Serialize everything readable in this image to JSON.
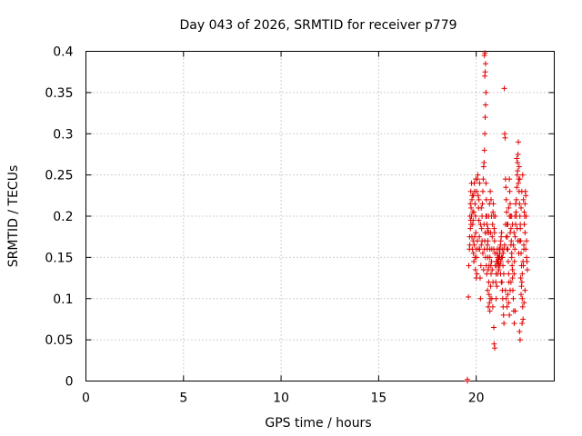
{
  "chart_data": {
    "type": "scatter",
    "title": "Day 043 of 2026, SRMTID for receiver p779",
    "xlabel": "GPS time / hours",
    "ylabel": "SRMTID / TECUs",
    "xlim": [
      0,
      24
    ],
    "ylim": [
      0,
      0.4
    ],
    "xticks": [
      0,
      5,
      10,
      15,
      20
    ],
    "xtick_labels": [
      "0",
      "5",
      "10",
      "15",
      "20"
    ],
    "yticks": [
      0,
      0.05,
      0.1,
      0.15,
      0.2,
      0.25,
      0.3,
      0.35,
      0.4
    ],
    "ytick_labels": [
      "0",
      "0.05",
      "0.1",
      "0.15",
      "0.2",
      "0.25",
      "0.3",
      "0.35",
      "0.4"
    ],
    "grid": true,
    "marker": "+",
    "color": "#e00000",
    "series": [
      {
        "name": "SRMTID",
        "points": [
          [
            19.55,
            0.0
          ],
          [
            19.55,
            0.002
          ],
          [
            19.6,
            0.102
          ],
          [
            19.62,
            0.14
          ],
          [
            19.65,
            0.16
          ],
          [
            19.67,
            0.165
          ],
          [
            19.7,
            0.185
          ],
          [
            19.72,
            0.195
          ],
          [
            19.74,
            0.21
          ],
          [
            19.76,
            0.2
          ],
          [
            19.78,
            0.22
          ],
          [
            19.8,
            0.225
          ],
          [
            19.82,
            0.19
          ],
          [
            19.84,
            0.17
          ],
          [
            19.86,
            0.155
          ],
          [
            19.88,
            0.145
          ],
          [
            19.9,
            0.24
          ],
          [
            19.92,
            0.23
          ],
          [
            19.94,
            0.215
          ],
          [
            19.96,
            0.2
          ],
          [
            19.98,
            0.18
          ],
          [
            20.0,
            0.16
          ],
          [
            20.02,
            0.15
          ],
          [
            20.04,
            0.13
          ],
          [
            20.06,
            0.245
          ],
          [
            20.08,
            0.25
          ],
          [
            20.1,
            0.225
          ],
          [
            20.12,
            0.21
          ],
          [
            20.14,
            0.195
          ],
          [
            20.16,
            0.175
          ],
          [
            20.18,
            0.16
          ],
          [
            20.2,
            0.125
          ],
          [
            20.22,
            0.1
          ],
          [
            20.24,
            0.14
          ],
          [
            20.26,
            0.165
          ],
          [
            20.28,
            0.185
          ],
          [
            20.3,
            0.2
          ],
          [
            20.32,
            0.215
          ],
          [
            20.34,
            0.23
          ],
          [
            20.36,
            0.245
          ],
          [
            20.38,
            0.26
          ],
          [
            20.4,
            0.265
          ],
          [
            20.42,
            0.28
          ],
          [
            20.44,
            0.3
          ],
          [
            20.46,
            0.32
          ],
          [
            20.48,
            0.335
          ],
          [
            20.5,
            0.35
          ],
          [
            20.44,
            0.37
          ],
          [
            20.46,
            0.375
          ],
          [
            20.48,
            0.385
          ],
          [
            20.42,
            0.395
          ],
          [
            20.45,
            0.398
          ],
          [
            20.5,
            0.24
          ],
          [
            20.52,
            0.22
          ],
          [
            20.54,
            0.2
          ],
          [
            20.56,
            0.18
          ],
          [
            20.58,
            0.165
          ],
          [
            20.6,
            0.15
          ],
          [
            20.62,
            0.135
          ],
          [
            20.64,
            0.12
          ],
          [
            20.66,
            0.105
          ],
          [
            20.68,
            0.095
          ],
          [
            20.7,
            0.085
          ],
          [
            20.72,
            0.1
          ],
          [
            20.74,
            0.115
          ],
          [
            20.76,
            0.13
          ],
          [
            20.78,
            0.145
          ],
          [
            20.8,
            0.16
          ],
          [
            20.82,
            0.175
          ],
          [
            20.84,
            0.19
          ],
          [
            20.86,
            0.205
          ],
          [
            20.88,
            0.215
          ],
          [
            20.9,
            0.2
          ],
          [
            20.92,
            0.185
          ],
          [
            20.94,
            0.17
          ],
          [
            20.96,
            0.155
          ],
          [
            20.98,
            0.14
          ],
          [
            21.0,
            0.12
          ],
          [
            20.9,
            0.065
          ],
          [
            20.92,
            0.045
          ],
          [
            20.95,
            0.04
          ],
          [
            21.02,
            0.13
          ],
          [
            21.04,
            0.145
          ],
          [
            21.06,
            0.155
          ],
          [
            21.08,
            0.16
          ],
          [
            21.1,
            0.15
          ],
          [
            21.12,
            0.145
          ],
          [
            21.14,
            0.14
          ],
          [
            21.16,
            0.135
          ],
          [
            21.18,
            0.15
          ],
          [
            21.2,
            0.155
          ],
          [
            21.22,
            0.16
          ],
          [
            21.24,
            0.165
          ],
          [
            21.26,
            0.17
          ],
          [
            21.28,
            0.175
          ],
          [
            21.3,
            0.18
          ],
          [
            21.32,
            0.12
          ],
          [
            21.34,
            0.11
          ],
          [
            21.36,
            0.1
          ],
          [
            21.38,
            0.09
          ],
          [
            21.4,
            0.08
          ],
          [
            21.42,
            0.07
          ],
          [
            21.44,
            0.355
          ],
          [
            21.46,
            0.3
          ],
          [
            21.48,
            0.295
          ],
          [
            21.5,
            0.245
          ],
          [
            21.52,
            0.235
          ],
          [
            21.54,
            0.22
          ],
          [
            21.56,
            0.205
          ],
          [
            21.58,
            0.19
          ],
          [
            21.6,
            0.175
          ],
          [
            21.62,
            0.16
          ],
          [
            21.64,
            0.145
          ],
          [
            21.66,
            0.13
          ],
          [
            21.68,
            0.12
          ],
          [
            21.7,
            0.245
          ],
          [
            21.72,
            0.23
          ],
          [
            21.74,
            0.215
          ],
          [
            21.76,
            0.2
          ],
          [
            21.78,
            0.185
          ],
          [
            21.8,
            0.17
          ],
          [
            21.82,
            0.155
          ],
          [
            21.84,
            0.14
          ],
          [
            21.86,
            0.125
          ],
          [
            21.88,
            0.11
          ],
          [
            21.9,
            0.1
          ],
          [
            21.92,
            0.085
          ],
          [
            21.94,
            0.13
          ],
          [
            21.96,
            0.145
          ],
          [
            21.98,
            0.16
          ],
          [
            22.0,
            0.175
          ],
          [
            22.02,
            0.19
          ],
          [
            22.04,
            0.205
          ],
          [
            22.06,
            0.22
          ],
          [
            22.08,
            0.235
          ],
          [
            22.1,
            0.25
          ],
          [
            22.12,
            0.265
          ],
          [
            22.14,
            0.275
          ],
          [
            22.16,
            0.29
          ],
          [
            22.18,
            0.245
          ],
          [
            22.2,
            0.23
          ],
          [
            22.22,
            0.215
          ],
          [
            22.24,
            0.2
          ],
          [
            22.26,
            0.185
          ],
          [
            22.28,
            0.17
          ],
          [
            22.3,
            0.155
          ],
          [
            22.32,
            0.14
          ],
          [
            22.34,
            0.12
          ],
          [
            22.36,
            0.1
          ],
          [
            22.38,
            0.09
          ],
          [
            22.4,
            0.075
          ],
          [
            22.22,
            0.06
          ],
          [
            22.25,
            0.05
          ],
          [
            22.42,
            0.14
          ],
          [
            22.44,
            0.165
          ],
          [
            22.46,
            0.19
          ],
          [
            22.48,
            0.2
          ],
          [
            22.5,
            0.215
          ],
          [
            22.52,
            0.23
          ],
          [
            22.54,
            0.225
          ],
          [
            22.56,
            0.2
          ],
          [
            22.58,
            0.17
          ],
          [
            22.6,
            0.145
          ],
          [
            22.62,
            0.135
          ],
          [
            22.35,
            0.07
          ],
          [
            22.45,
            0.095
          ],
          [
            22.5,
            0.11
          ],
          [
            22.3,
            0.105
          ],
          [
            22.0,
            0.085
          ],
          [
            21.95,
            0.07
          ],
          [
            19.7,
            0.215
          ],
          [
            19.74,
            0.19
          ],
          [
            19.78,
            0.175
          ],
          [
            19.82,
            0.205
          ],
          [
            19.86,
            0.225
          ],
          [
            19.9,
            0.165
          ],
          [
            19.94,
            0.15
          ],
          [
            19.98,
            0.245
          ],
          [
            20.02,
            0.23
          ],
          [
            20.06,
            0.17
          ],
          [
            20.1,
            0.16
          ],
          [
            20.14,
            0.22
          ],
          [
            20.18,
            0.24
          ],
          [
            20.22,
            0.19
          ],
          [
            20.26,
            0.21
          ],
          [
            20.3,
            0.17
          ],
          [
            20.34,
            0.155
          ],
          [
            20.38,
            0.135
          ],
          [
            20.42,
            0.16
          ],
          [
            20.46,
            0.18
          ],
          [
            20.54,
            0.13
          ],
          [
            20.58,
            0.11
          ],
          [
            20.62,
            0.09
          ],
          [
            20.66,
            0.14
          ],
          [
            20.7,
            0.16
          ],
          [
            20.74,
            0.18
          ],
          [
            20.78,
            0.2
          ],
          [
            20.82,
            0.135
          ],
          [
            20.86,
            0.12
          ],
          [
            20.9,
            0.16
          ],
          [
            20.94,
            0.18
          ],
          [
            20.98,
            0.2
          ],
          [
            21.02,
            0.1
          ],
          [
            21.06,
            0.115
          ],
          [
            21.1,
            0.13
          ],
          [
            21.14,
            0.15
          ],
          [
            21.18,
            0.16
          ],
          [
            21.22,
            0.14
          ],
          [
            21.26,
            0.145
          ],
          [
            21.3,
            0.15
          ],
          [
            21.34,
            0.15
          ],
          [
            21.38,
            0.155
          ],
          [
            21.42,
            0.16
          ],
          [
            21.46,
            0.165
          ],
          [
            21.5,
            0.19
          ],
          [
            21.54,
            0.175
          ],
          [
            21.58,
            0.16
          ],
          [
            21.62,
            0.19
          ],
          [
            21.66,
            0.21
          ],
          [
            21.7,
            0.2
          ],
          [
            21.74,
            0.18
          ],
          [
            21.78,
            0.165
          ],
          [
            21.82,
            0.15
          ],
          [
            21.86,
            0.135
          ],
          [
            21.9,
            0.165
          ],
          [
            21.94,
            0.18
          ],
          [
            21.98,
            0.2
          ],
          [
            22.02,
            0.215
          ],
          [
            22.06,
            0.2
          ],
          [
            22.1,
            0.185
          ],
          [
            22.14,
            0.17
          ],
          [
            22.18,
            0.155
          ],
          [
            22.22,
            0.17
          ],
          [
            22.26,
            0.19
          ],
          [
            22.3,
            0.21
          ],
          [
            22.34,
            0.23
          ],
          [
            22.38,
            0.25
          ],
          [
            22.42,
            0.22
          ],
          [
            22.46,
            0.205
          ],
          [
            22.5,
            0.18
          ],
          [
            22.54,
            0.16
          ],
          [
            22.58,
            0.15
          ],
          [
            20.5,
            0.2
          ],
          [
            20.55,
            0.19
          ],
          [
            20.6,
            0.17
          ],
          [
            20.65,
            0.18
          ],
          [
            20.7,
            0.15
          ],
          [
            20.75,
            0.14
          ],
          [
            20.8,
            0.1
          ],
          [
            20.85,
            0.09
          ],
          [
            21.05,
            0.14
          ],
          [
            21.09,
            0.145
          ],
          [
            21.13,
            0.148
          ],
          [
            21.17,
            0.142
          ],
          [
            21.21,
            0.15
          ],
          [
            21.25,
            0.13
          ],
          [
            21.29,
            0.12
          ],
          [
            21.33,
            0.16
          ],
          [
            21.37,
            0.14
          ],
          [
            21.41,
            0.13
          ],
          [
            19.66,
            0.175
          ],
          [
            19.68,
            0.2
          ],
          [
            19.72,
            0.23
          ],
          [
            19.76,
            0.24
          ],
          [
            19.8,
            0.16
          ],
          [
            19.84,
            0.195
          ],
          [
            19.88,
            0.205
          ],
          [
            19.92,
            0.175
          ],
          [
            19.96,
            0.135
          ],
          [
            20.0,
            0.125
          ],
          [
            22.08,
            0.27
          ],
          [
            22.12,
            0.255
          ],
          [
            22.16,
            0.24
          ],
          [
            22.2,
            0.26
          ],
          [
            22.24,
            0.245
          ],
          [
            22.28,
            0.125
          ],
          [
            22.32,
            0.115
          ],
          [
            22.36,
            0.13
          ],
          [
            22.4,
            0.145
          ],
          [
            22.44,
            0.16
          ],
          [
            21.5,
            0.11
          ],
          [
            21.54,
            0.1
          ],
          [
            21.58,
            0.09
          ],
          [
            21.62,
            0.105
          ],
          [
            21.66,
            0.095
          ],
          [
            21.7,
            0.08
          ],
          [
            21.74,
            0.11
          ],
          [
            21.78,
            0.12
          ],
          [
            21.82,
            0.2
          ],
          [
            21.86,
            0.19
          ],
          [
            20.4,
            0.19
          ],
          [
            20.44,
            0.17
          ],
          [
            20.48,
            0.15
          ],
          [
            20.52,
            0.14
          ],
          [
            20.56,
            0.16
          ],
          [
            20.6,
            0.185
          ],
          [
            20.64,
            0.2
          ],
          [
            20.68,
            0.215
          ],
          [
            20.72,
            0.23
          ],
          [
            20.76,
            0.22
          ]
        ]
      }
    ]
  }
}
